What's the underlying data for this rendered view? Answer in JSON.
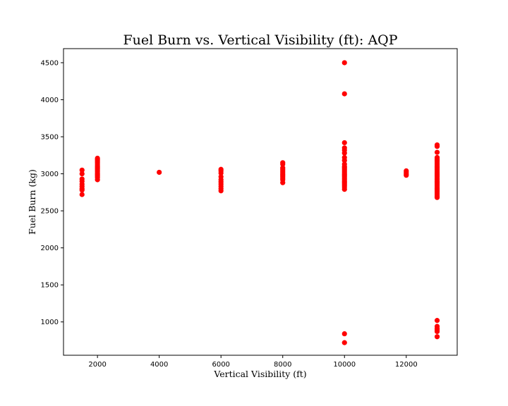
{
  "chart_data": {
    "type": "scatter",
    "title": "Fuel Burn vs. Vertical Visibility (ft): AQP",
    "xlabel": "Vertical Visibility (ft)",
    "ylabel": "Fuel Burn (kg)",
    "xlim": [
      900,
      13650
    ],
    "ylim": [
      550,
      4690
    ],
    "xticks": [
      2000,
      4000,
      6000,
      8000,
      10000,
      12000
    ],
    "yticks": [
      1000,
      1500,
      2000,
      2500,
      3000,
      3500,
      4000,
      4500
    ],
    "grid": false,
    "marker_color": "#ff0000",
    "series": [
      {
        "points": [
          [
            1500,
            3050
          ],
          [
            1500,
            3000
          ],
          [
            1500,
            2930
          ],
          [
            1500,
            2900
          ],
          [
            1500,
            2860
          ],
          [
            1500,
            2830
          ],
          [
            1500,
            2800
          ],
          [
            1500,
            2780
          ],
          [
            1500,
            2720
          ],
          [
            2000,
            3210
          ],
          [
            2000,
            3190
          ],
          [
            2000,
            3170
          ],
          [
            2000,
            3150
          ],
          [
            2000,
            3130
          ],
          [
            2000,
            3110
          ],
          [
            2000,
            3090
          ],
          [
            2000,
            3070
          ],
          [
            2000,
            3050
          ],
          [
            2000,
            3030
          ],
          [
            2000,
            3010
          ],
          [
            2000,
            2990
          ],
          [
            2000,
            2970
          ],
          [
            2000,
            2950
          ],
          [
            2000,
            2920
          ],
          [
            4000,
            3020
          ],
          [
            6000,
            3060
          ],
          [
            6000,
            3040
          ],
          [
            6000,
            3010
          ],
          [
            6000,
            2960
          ],
          [
            6000,
            2920
          ],
          [
            6000,
            2890
          ],
          [
            6000,
            2860
          ],
          [
            6000,
            2830
          ],
          [
            6000,
            2800
          ],
          [
            6000,
            2770
          ],
          [
            8000,
            3150
          ],
          [
            8000,
            3130
          ],
          [
            8000,
            3080
          ],
          [
            8000,
            3060
          ],
          [
            8000,
            3040
          ],
          [
            8000,
            3020
          ],
          [
            8000,
            3000
          ],
          [
            8000,
            2980
          ],
          [
            8000,
            2960
          ],
          [
            8000,
            2940
          ],
          [
            8000,
            2920
          ],
          [
            8000,
            2880
          ],
          [
            10000,
            4500
          ],
          [
            10000,
            4080
          ],
          [
            10000,
            3420
          ],
          [
            10000,
            3350
          ],
          [
            10000,
            3320
          ],
          [
            10000,
            3280
          ],
          [
            10000,
            3220
          ],
          [
            10000,
            3180
          ],
          [
            10000,
            3130
          ],
          [
            10000,
            3100
          ],
          [
            10000,
            3080
          ],
          [
            10000,
            3060
          ],
          [
            10000,
            3040
          ],
          [
            10000,
            3020
          ],
          [
            10000,
            3000
          ],
          [
            10000,
            2980
          ],
          [
            10000,
            2960
          ],
          [
            10000,
            2940
          ],
          [
            10000,
            2920
          ],
          [
            10000,
            2900
          ],
          [
            10000,
            2880
          ],
          [
            10000,
            2860
          ],
          [
            10000,
            2840
          ],
          [
            10000,
            2820
          ],
          [
            10000,
            2790
          ],
          [
            10000,
            840
          ],
          [
            10000,
            720
          ],
          [
            12000,
            3040
          ],
          [
            12000,
            3020
          ],
          [
            12000,
            3000
          ],
          [
            12000,
            2980
          ],
          [
            13000,
            3390
          ],
          [
            13000,
            3370
          ],
          [
            13000,
            3290
          ],
          [
            13000,
            3220
          ],
          [
            13000,
            3200
          ],
          [
            13000,
            3180
          ],
          [
            13000,
            3160
          ],
          [
            13000,
            3140
          ],
          [
            13000,
            3120
          ],
          [
            13000,
            3100
          ],
          [
            13000,
            3080
          ],
          [
            13000,
            3060
          ],
          [
            13000,
            3040
          ],
          [
            13000,
            3020
          ],
          [
            13000,
            3000
          ],
          [
            13000,
            2980
          ],
          [
            13000,
            2960
          ],
          [
            13000,
            2940
          ],
          [
            13000,
            2920
          ],
          [
            13000,
            2900
          ],
          [
            13000,
            2880
          ],
          [
            13000,
            2860
          ],
          [
            13000,
            2840
          ],
          [
            13000,
            2820
          ],
          [
            13000,
            2800
          ],
          [
            13000,
            2780
          ],
          [
            13000,
            2760
          ],
          [
            13000,
            2740
          ],
          [
            13000,
            2720
          ],
          [
            13000,
            2700
          ],
          [
            13000,
            2680
          ],
          [
            13000,
            1020
          ],
          [
            13000,
            940
          ],
          [
            13000,
            910
          ],
          [
            13000,
            890
          ],
          [
            13000,
            870
          ],
          [
            13000,
            800
          ]
        ]
      }
    ]
  }
}
